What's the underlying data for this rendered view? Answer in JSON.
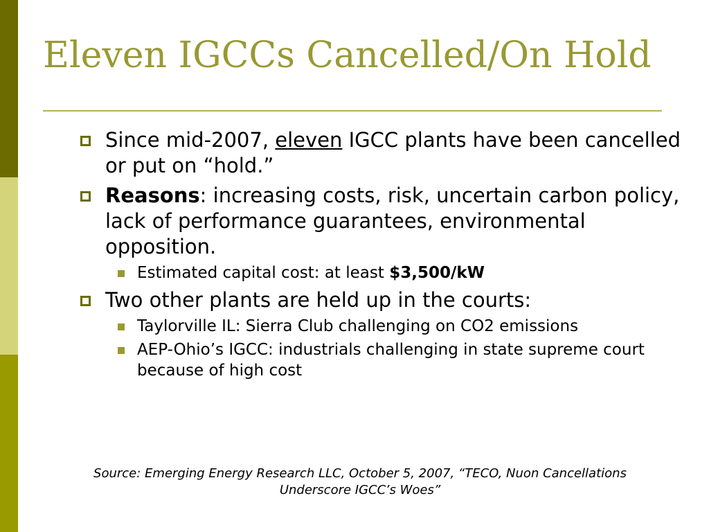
{
  "slide": {
    "title": "Eleven IGCCs Cancelled/On Hold",
    "bullets": [
      {
        "pre": "Since mid-2007, ",
        "emph": "eleven",
        "post": " IGCC plants have been cancelled or put on “hold.”"
      },
      {
        "bold": "Reasons",
        "text": ": increasing costs, risk, uncertain carbon policy, lack of performance guarantees, environmental opposition.",
        "sub": [
          {
            "text": "Estimated capital cost: at least ",
            "bold": "$3,500/kW"
          }
        ]
      },
      {
        "text": "Two other plants are held up in the courts:",
        "sub": [
          {
            "text": "Taylorville IL: Sierra Club challenging on CO2 emissions"
          },
          {
            "text": "AEP-Ohio’s IGCC: industrials challenging in state supreme court because of high cost"
          }
        ]
      }
    ],
    "source": "Source: Emerging Energy Research LLC, October 5, 2007, “TECO, Nuon Cancellations Underscore IGCC’s Woes”"
  },
  "colors": {
    "stripe_dark": "#6b6b00",
    "stripe_light": "#d4d47a",
    "stripe_mid": "#999900",
    "title": "#999933",
    "rule": "#b3b34d"
  },
  "icons": {
    "bullet": "hollow-square-icon",
    "subbullet": "filled-square-icon"
  }
}
